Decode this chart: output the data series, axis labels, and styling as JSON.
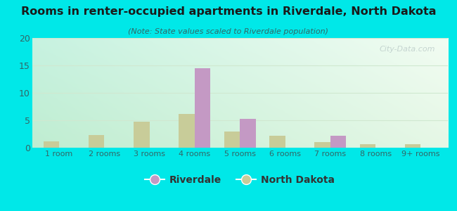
{
  "title": "Rooms in renter-occupied apartments in Riverdale, North Dakota",
  "subtitle": "(Note: State values scaled to Riverdale population)",
  "categories": [
    "1 room",
    "2 rooms",
    "3 rooms",
    "4 rooms",
    "5 rooms",
    "6 rooms",
    "7 rooms",
    "8 rooms",
    "9+ rooms"
  ],
  "riverdale": [
    0,
    0,
    0,
    14.5,
    5.2,
    0,
    2.2,
    0,
    0
  ],
  "north_dakota": [
    1.1,
    2.3,
    4.7,
    6.1,
    3.0,
    2.2,
    1.0,
    0.6,
    0.7
  ],
  "riverdale_color": "#c499c4",
  "north_dakota_color": "#c8cc99",
  "ylim": [
    0,
    20
  ],
  "yticks": [
    0,
    5,
    10,
    15,
    20
  ],
  "background_color": "#00e8e8",
  "watermark": "City-Data.com",
  "bar_width": 0.35,
  "title_color": "#1a1a1a",
  "subtitle_color": "#336666",
  "tick_color": "#336666",
  "grid_color": "#d0e8d0"
}
